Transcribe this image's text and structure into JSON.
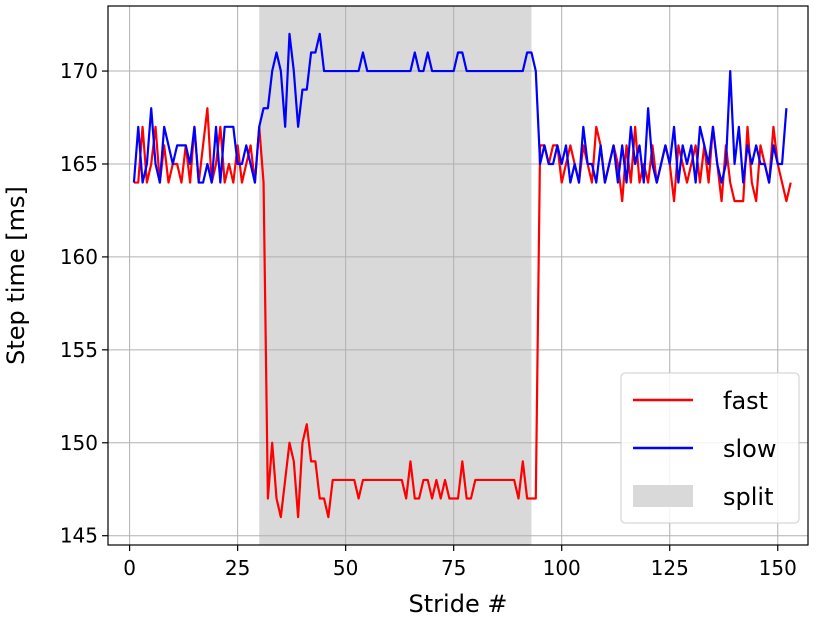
{
  "chart_data": {
    "type": "line",
    "xlabel": "Stride #",
    "ylabel": "Step time [ms]",
    "xlim": [
      -5,
      157
    ],
    "ylim": [
      144.5,
      173.5
    ],
    "xticks": [
      0,
      25,
      50,
      75,
      100,
      125,
      150
    ],
    "yticks": [
      145,
      150,
      155,
      160,
      165,
      170
    ],
    "grid": true,
    "legend_placement": "bottom-right",
    "split_region": {
      "name": "split",
      "x_start": 30,
      "x_end": 93,
      "color": "#d9d9d9"
    },
    "series": [
      {
        "name": "fast",
        "color": "#ff0000",
        "x_start": 1,
        "values": [
          164,
          164,
          167,
          164,
          165,
          167,
          164,
          166,
          164,
          165,
          165,
          164,
          166,
          164,
          167,
          164,
          166,
          168,
          164,
          165,
          167,
          164,
          165,
          164,
          166,
          164,
          165,
          166,
          164,
          167,
          164,
          147,
          150,
          147,
          146,
          148,
          150,
          149,
          146,
          150,
          151,
          149,
          149,
          147,
          147,
          146,
          148,
          148,
          148,
          148,
          148,
          148,
          147,
          148,
          148,
          148,
          148,
          148,
          148,
          148,
          148,
          148,
          148,
          147,
          149,
          147,
          147,
          148,
          148,
          147,
          148,
          147,
          148,
          147,
          147,
          147,
          149,
          147,
          147,
          148,
          148,
          148,
          148,
          148,
          148,
          148,
          148,
          148,
          148,
          147,
          149,
          147,
          147,
          147,
          166,
          166,
          165,
          166,
          166,
          164,
          165,
          166,
          165,
          164,
          166,
          165,
          164,
          167,
          166,
          164,
          165,
          166,
          165,
          163,
          166,
          164,
          167,
          164,
          165,
          164,
          166,
          164,
          165,
          166,
          165,
          163,
          166,
          165,
          164,
          165,
          166,
          164,
          166,
          164,
          167,
          165,
          163,
          166,
          164,
          163,
          163,
          163,
          167,
          164,
          163,
          166,
          165,
          164,
          167,
          165,
          164,
          163,
          164
        ]
      },
      {
        "name": "slow",
        "color": "#0000ff",
        "x_start": 1,
        "values": [
          164,
          167,
          164,
          165,
          168,
          165,
          164,
          167,
          166,
          165,
          166,
          166,
          166,
          165,
          167,
          164,
          164,
          165,
          164,
          167,
          164,
          167,
          167,
          167,
          165,
          165,
          166,
          165,
          164,
          167,
          168,
          168,
          170,
          171,
          170,
          167,
          172,
          170,
          167,
          169,
          169,
          171,
          171,
          172,
          170,
          170,
          170,
          170,
          170,
          170,
          170,
          170,
          170,
          171,
          170,
          170,
          170,
          170,
          170,
          170,
          170,
          170,
          170,
          170,
          170,
          171,
          170,
          170,
          171,
          170,
          170,
          170,
          170,
          170,
          170,
          171,
          171,
          170,
          170,
          170,
          170,
          170,
          170,
          170,
          170,
          170,
          170,
          170,
          170,
          170,
          170,
          171,
          171,
          170,
          165,
          166,
          165,
          165,
          166,
          165,
          166,
          164,
          165,
          164,
          167,
          165,
          165,
          164,
          166,
          164,
          165,
          166,
          164,
          166,
          164,
          167,
          165,
          166,
          164,
          168,
          165,
          164,
          165,
          166,
          165,
          167,
          164,
          166,
          165,
          166,
          164,
          167,
          166,
          165,
          167,
          165,
          164,
          165,
          170,
          165,
          167,
          164,
          166,
          165,
          166,
          165,
          165,
          164,
          166,
          165,
          165,
          168
        ]
      }
    ],
    "legend": [
      {
        "label": "fast",
        "kind": "line",
        "color": "#ff0000"
      },
      {
        "label": "slow",
        "kind": "line",
        "color": "#0000ff"
      },
      {
        "label": "split",
        "kind": "patch",
        "color": "#d9d9d9"
      }
    ]
  }
}
